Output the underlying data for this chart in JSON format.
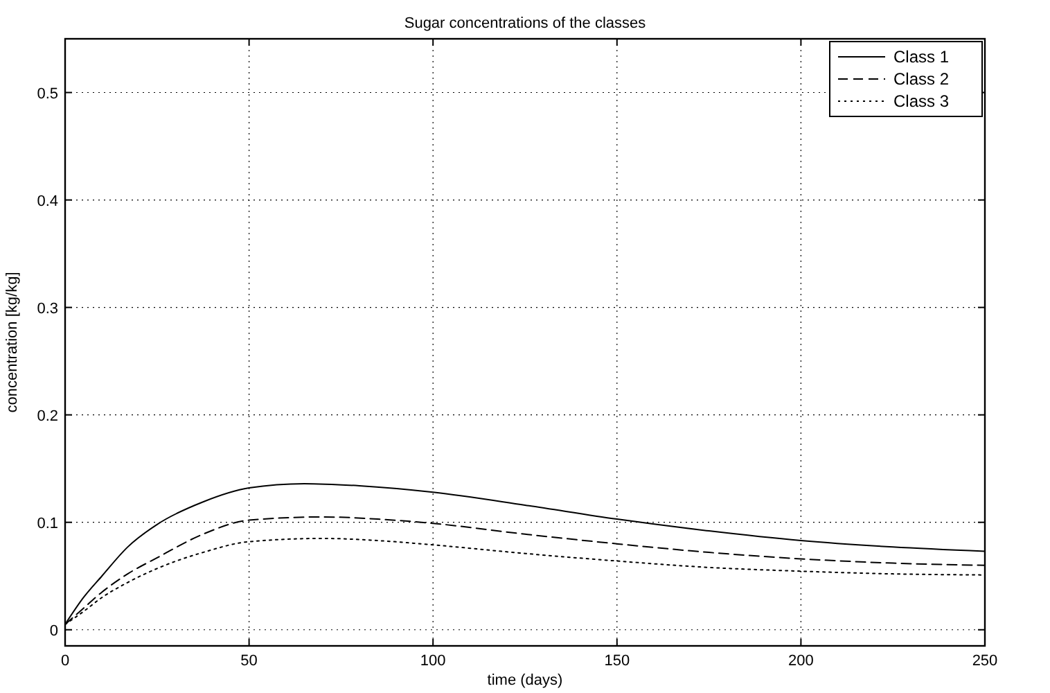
{
  "chart_data": {
    "type": "line",
    "title": "Sugar concentrations of the classes",
    "xlabel": "time (days)",
    "ylabel": "concentration [kg/kg]",
    "xlim": [
      0,
      250
    ],
    "xticks": [
      0,
      50,
      100,
      150,
      200,
      250
    ],
    "ylim": [
      -0.015,
      0.55
    ],
    "yticks": [
      0,
      0.1,
      0.2,
      0.3,
      0.4,
      0.5
    ],
    "grid": true,
    "legend": "top right",
    "marker": "none",
    "series": [
      {
        "name": "Class 1",
        "color": "#000000",
        "line_style": "solid",
        "x": [
          0,
          5,
          10,
          17,
          25,
          37.5,
          50,
          65,
          80,
          100,
          125,
          150,
          175,
          200,
          225,
          250
        ],
        "values": [
          0.005,
          0.03,
          0.05,
          0.077,
          0.098,
          0.119,
          0.132,
          0.136,
          0.134,
          0.128,
          0.116,
          0.103,
          0.092,
          0.083,
          0.077,
          0.073
        ]
      },
      {
        "name": "Class 2",
        "color": "#000000",
        "line_style": "dashed",
        "x": [
          0,
          5,
          10,
          17,
          25,
          37.5,
          50,
          70,
          85,
          100,
          125,
          150,
          175,
          200,
          225,
          250
        ],
        "values": [
          0.005,
          0.02,
          0.035,
          0.052,
          0.067,
          0.089,
          0.102,
          0.105,
          0.103,
          0.099,
          0.089,
          0.08,
          0.072,
          0.066,
          0.062,
          0.06
        ]
      },
      {
        "name": "Class 3",
        "color": "#000000",
        "line_style": "dotted",
        "x": [
          0,
          5,
          10,
          17,
          25,
          37.5,
          50,
          70,
          85,
          100,
          125,
          150,
          175,
          200,
          225,
          250
        ],
        "values": [
          0.005,
          0.017,
          0.03,
          0.044,
          0.057,
          0.072,
          0.082,
          0.085,
          0.083,
          0.079,
          0.071,
          0.064,
          0.058,
          0.0545,
          0.052,
          0.051
        ]
      }
    ]
  }
}
